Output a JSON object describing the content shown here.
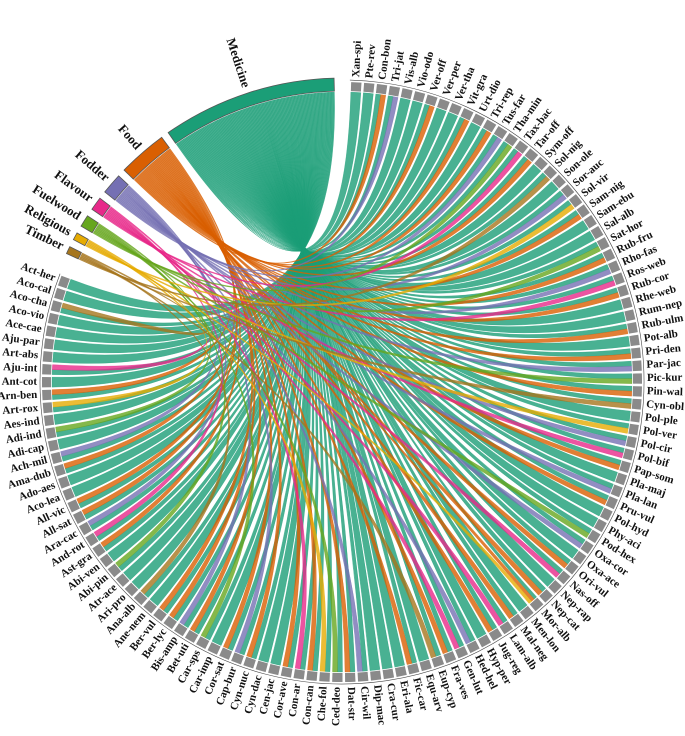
{
  "chart_data": {
    "type": "chord",
    "species": [
      "Xan-spi",
      "Pte-rev",
      "Con-bon",
      "Tri-jat",
      "Vis-alb",
      "Vio-odo",
      "Ver-off",
      "Ver-per",
      "Ver-tha",
      "Vit-gra",
      "Urt-dio",
      "Tri-rep",
      "Tus-far",
      "Tha-min",
      "Tax-bac",
      "Tar-off",
      "Sym-off",
      "Sol-nig",
      "Son-ole",
      "Sor-auc",
      "Sol-vir",
      "Sam-nig",
      "Sam-ebu",
      "Sal-alb",
      "Sat-hor",
      "Rub-fru",
      "Rho-fas",
      "Ros-web",
      "Rub-cor",
      "Rhe-web",
      "Rum-nep",
      "Rub-ulm",
      "Pot-alb",
      "Pri-den",
      "Par-jac",
      "Pic-kur",
      "Pin-wal",
      "Cyn-obl",
      "Pol-ple",
      "Pol-ver",
      "Pol-cir",
      "Pol-bif",
      "Pap-som",
      "Pla-maj",
      "Pla-lan",
      "Pru-vul",
      "Pol-hyd",
      "Phy-aci",
      "Pod-hex",
      "Oxa-cor",
      "Oxa-ace",
      "Ori-vul",
      "Nas-off",
      "Nep-rap",
      "Nep-cat",
      "Mor-alb",
      "Men-lon",
      "Mal-neg",
      "Lam-alb",
      "Jug-reg",
      "Hyp-per",
      "Hed-hel",
      "Gen-lut",
      "Fra-ves",
      "Eup-cyp",
      "Equ-arv",
      "Fic-car",
      "Eri-ala",
      "Cra-cur",
      "Dip-mac",
      "Cir-wil",
      "Dat-str",
      "Ced-deo",
      "Che-fol",
      "Con-can",
      "Con-ar",
      "Cor-ave",
      "Cen-jac",
      "Cyn-dac",
      "Cyn-nuc",
      "Cap-bur",
      "Cor-sat",
      "Car-imp",
      "Car-sps",
      "Bet-uti",
      "Bis-amp",
      "Ber-lyc",
      "Ber-vul",
      "Ane-nem",
      "Ana-alb",
      "Ari-pro",
      "Atr-ace",
      "Abi-pin",
      "Abi-ven",
      "Ast-gra",
      "And-rot",
      "Ara-cac",
      "All-sat",
      "All-vic",
      "Aco-lea",
      "Ado-aes",
      "Ama-dub",
      "Ach-mil",
      "Adi-cap",
      "Adi-ind",
      "Aes-ind",
      "Art-rox",
      "Arn-ben",
      "Ant-cot",
      "Aju-int",
      "Art-abs",
      "Aju-par",
      "Ace-cae",
      "Aco-vio",
      "Aco-cha",
      "Aco-cal",
      "Act-her"
    ],
    "groups": [
      {
        "name": "Medicine",
        "color": "#1b9e77",
        "species": [
          0,
          1,
          2,
          3,
          4,
          5,
          6,
          7,
          8,
          9,
          10,
          11,
          12,
          13,
          14,
          15,
          16,
          17,
          18,
          19,
          20,
          21,
          22,
          23,
          24,
          25,
          26,
          27,
          28,
          29,
          30,
          31,
          32,
          33,
          34,
          35,
          36,
          37,
          38,
          39,
          40,
          41,
          42,
          43,
          44,
          45,
          46,
          47,
          48,
          49,
          50,
          51,
          52,
          53,
          54,
          55,
          56,
          57,
          58,
          59,
          60,
          61,
          62,
          63,
          64,
          65,
          66,
          67,
          68,
          69,
          70,
          71,
          72,
          73,
          74,
          75,
          76,
          77,
          78,
          79,
          80,
          81,
          82,
          83,
          84,
          85,
          86,
          87,
          88,
          89,
          90,
          91,
          92,
          93,
          94,
          95,
          96,
          97,
          98,
          99,
          100,
          101,
          102,
          103,
          104,
          105,
          106,
          107,
          108,
          109,
          110,
          111,
          112,
          113,
          114,
          115,
          116
        ]
      },
      {
        "name": "Food",
        "color": "#d95f02",
        "species": [
          2,
          6,
          9,
          11,
          15,
          21,
          25,
          28,
          31,
          33,
          36,
          42,
          45,
          51,
          54,
          55,
          57,
          59,
          63,
          66,
          71,
          74,
          76,
          79,
          81,
          84,
          86,
          87,
          94,
          97,
          98,
          101,
          107
        ]
      },
      {
        "name": "Fodder",
        "color": "#7570b3",
        "species": [
          3,
          12,
          19,
          26,
          34,
          40,
          44,
          49,
          61,
          70,
          80,
          85,
          96,
          102
        ]
      },
      {
        "name": "Flavour",
        "color": "#e7298a",
        "species": [
          14,
          27,
          41,
          52,
          58,
          62,
          75,
          95,
          109
        ]
      },
      {
        "name": "Fuelwood",
        "color": "#66a61e",
        "species": [
          13,
          24,
          35,
          48,
          72,
          83,
          92,
          104
        ]
      },
      {
        "name": "Religious",
        "color": "#e6ab02",
        "species": [
          20,
          39,
          55,
          73,
          106
        ]
      },
      {
        "name": "Timber",
        "color": "#a6761d",
        "species": [
          17,
          37,
          64,
          89,
          114
        ]
      }
    ]
  }
}
